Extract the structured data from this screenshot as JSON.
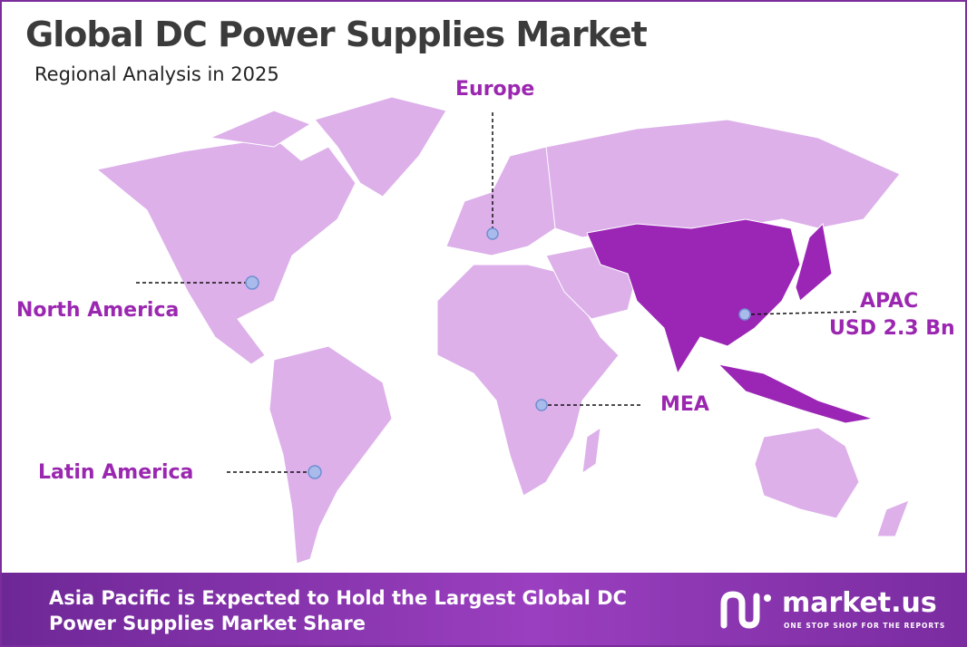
{
  "header": {
    "title": "Global DC Power Supplies Market",
    "subtitle": "Regional Analysis in 2025"
  },
  "regions": [
    {
      "label": "Europe"
    },
    {
      "label": "North America"
    },
    {
      "label": "APAC",
      "value": "USD 2.3 Bn"
    },
    {
      "label": "MEA"
    },
    {
      "label": "Latin America"
    }
  ],
  "footer": {
    "text": "Asia Pacific is Expected to Hold the Largest Global DC Power Supplies Market Share",
    "logo": {
      "name": "market.us",
      "tagline": "ONE STOP SHOP FOR THE REPORTS"
    }
  }
}
